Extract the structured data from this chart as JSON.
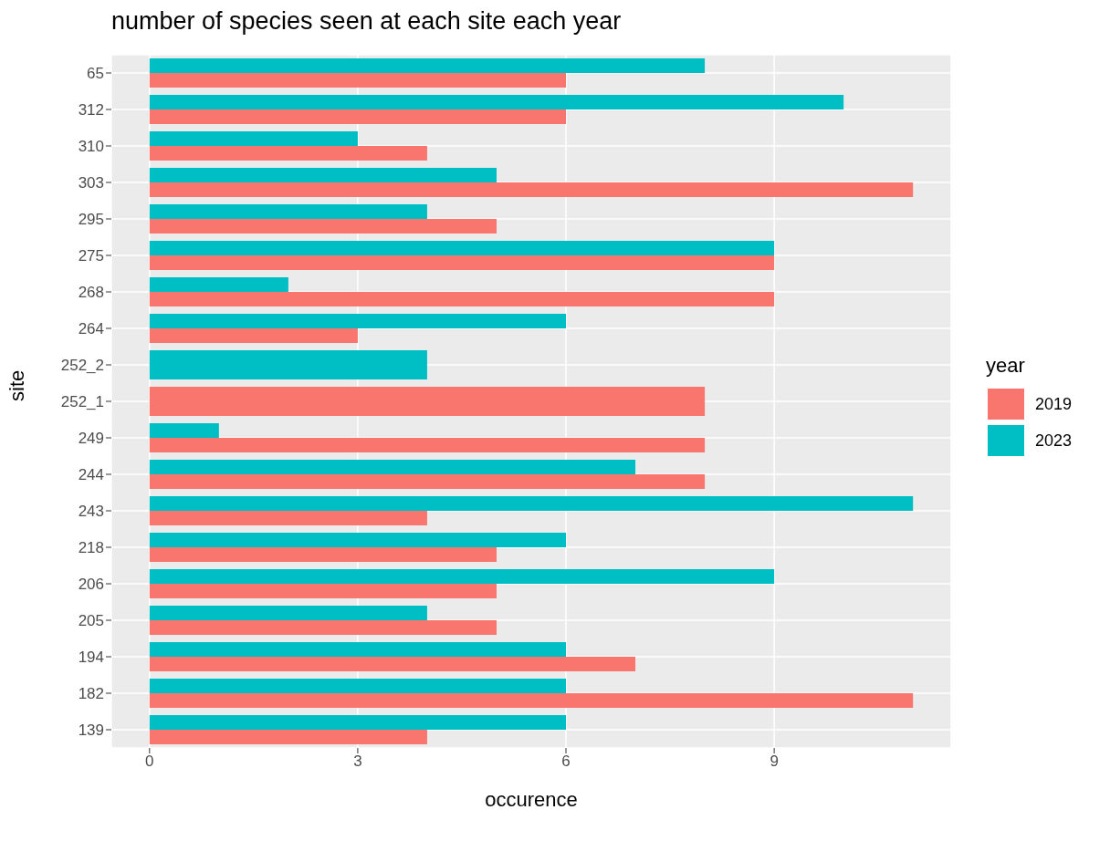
{
  "chart_data": {
    "type": "bar",
    "orientation": "horizontal",
    "title": "number of species seen at each site each year",
    "xlabel": "occurence",
    "ylabel": "site",
    "legend_title": "year",
    "categories": [
      "65",
      "312",
      "310",
      "303",
      "295",
      "275",
      "268",
      "264",
      "252_2",
      "252_1",
      "249",
      "244",
      "243",
      "218",
      "206",
      "205",
      "194",
      "182",
      "139"
    ],
    "series": [
      {
        "name": "2019",
        "color": "#f8766d",
        "values": [
          6,
          6,
          4,
          11,
          5,
          9,
          9,
          3,
          null,
          8,
          8,
          8,
          4,
          5,
          5,
          5,
          7,
          11,
          4
        ]
      },
      {
        "name": "2023",
        "color": "#00bfc4",
        "values": [
          8,
          10,
          3,
          5,
          4,
          9,
          2,
          6,
          4,
          null,
          1,
          7,
          11,
          6,
          9,
          4,
          6,
          6,
          6
        ]
      }
    ],
    "xlim": [
      -0.55,
      11.55
    ],
    "xticks": [
      0,
      3,
      6,
      9
    ],
    "grid": true,
    "legend": "right"
  }
}
